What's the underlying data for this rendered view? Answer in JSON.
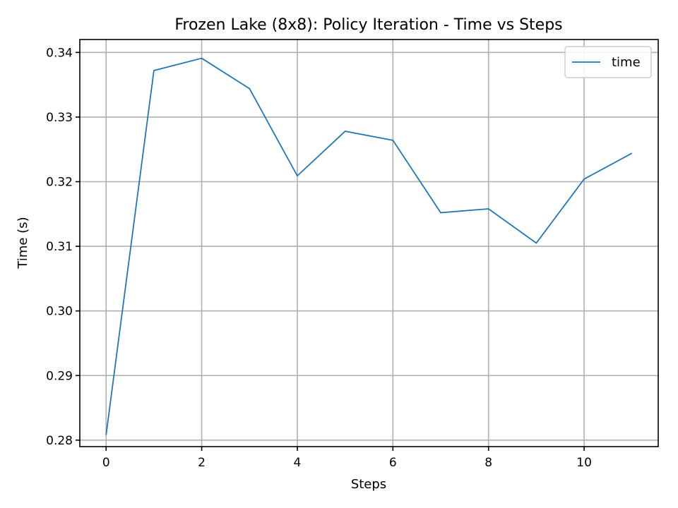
{
  "chart_data": {
    "type": "line",
    "title": "Frozen Lake (8x8): Policy Iteration - Time vs Steps",
    "xlabel": "Steps",
    "ylabel": "Time (s)",
    "xlim": [
      -0.55,
      11.55
    ],
    "ylim": [
      0.279,
      0.342
    ],
    "xticks": [
      0,
      2,
      4,
      6,
      8,
      10
    ],
    "yticks": [
      0.28,
      0.29,
      0.3,
      0.31,
      0.32,
      0.33,
      0.34
    ],
    "xtick_labels": [
      "0",
      "2",
      "4",
      "6",
      "8",
      "10"
    ],
    "ytick_labels": [
      "0.28",
      "0.29",
      "0.30",
      "0.31",
      "0.32",
      "0.33",
      "0.34"
    ],
    "grid": true,
    "legend_position": "top-right",
    "series": [
      {
        "name": "time",
        "color": "#1f77b4",
        "x": [
          0,
          1,
          2,
          3,
          4,
          5,
          6,
          7,
          8,
          9,
          10,
          11
        ],
        "y": [
          0.2808,
          0.3372,
          0.3391,
          0.3344,
          0.3209,
          0.3278,
          0.3264,
          0.3152,
          0.3158,
          0.3105,
          0.3204,
          0.3244
        ]
      }
    ]
  }
}
